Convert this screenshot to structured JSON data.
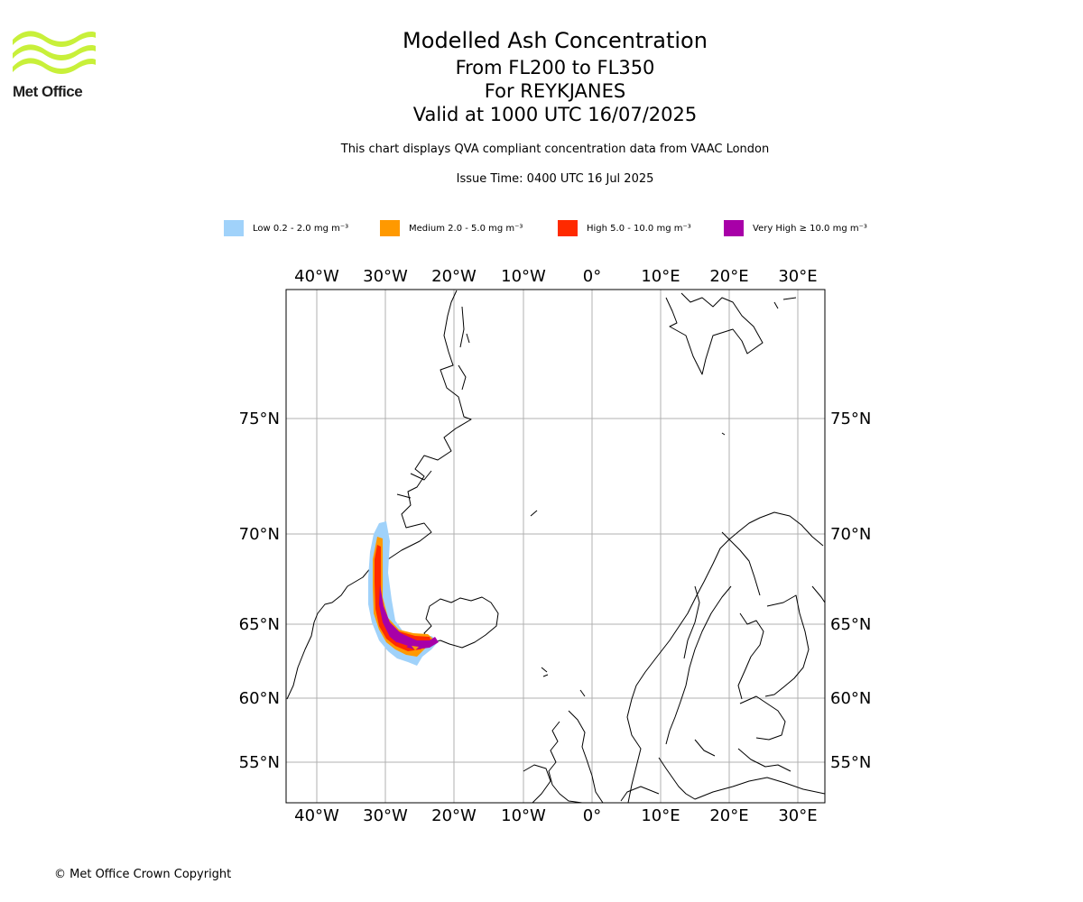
{
  "header": {
    "logo_text": "Met Office",
    "title": "Modelled Ash Concentration",
    "levels": "From FL200 to FL350",
    "volcano": "For REYKJANES",
    "valid": "Valid at 1000 UTC 16/07/2025",
    "qva_note": "This chart displays QVA compliant concentration data from VAAC London",
    "issue_time": "Issue Time: 0400 UTC 16 Jul 2025"
  },
  "legend": [
    {
      "label": "Low 0.2 - 2.0 mg m⁻³",
      "color": "#a0d2fa"
    },
    {
      "label": "Medium 2.0 - 5.0 mg m⁻³",
      "color": "#ff9900"
    },
    {
      "label": "High 5.0 - 10.0 mg m⁻³",
      "color": "#ff2a00"
    },
    {
      "label": "Very High ≥ 10.0 mg m⁻³",
      "color": "#a800a8"
    }
  ],
  "map": {
    "lon_ticks_top": [
      "40°W",
      "30°W",
      "20°W",
      "10°W",
      "0°",
      "10°E",
      "20°E",
      "30°E"
    ],
    "lon_ticks_bottom": [
      "40°W",
      "30°W",
      "20°W",
      "10°W",
      "0°",
      "10°E",
      "20°E",
      "30°E"
    ],
    "lat_ticks_left": [
      "75°N",
      "70°N",
      "65°N",
      "60°N",
      "55°N"
    ],
    "lat_ticks_right": [
      "75°N",
      "70°N",
      "65°N",
      "60°N",
      "55°N"
    ],
    "grid": true,
    "coastline_color": "#000000",
    "grid_color": "#b0b0b0"
  },
  "footer": {
    "copyright": "© Met Office Crown Copyright"
  }
}
